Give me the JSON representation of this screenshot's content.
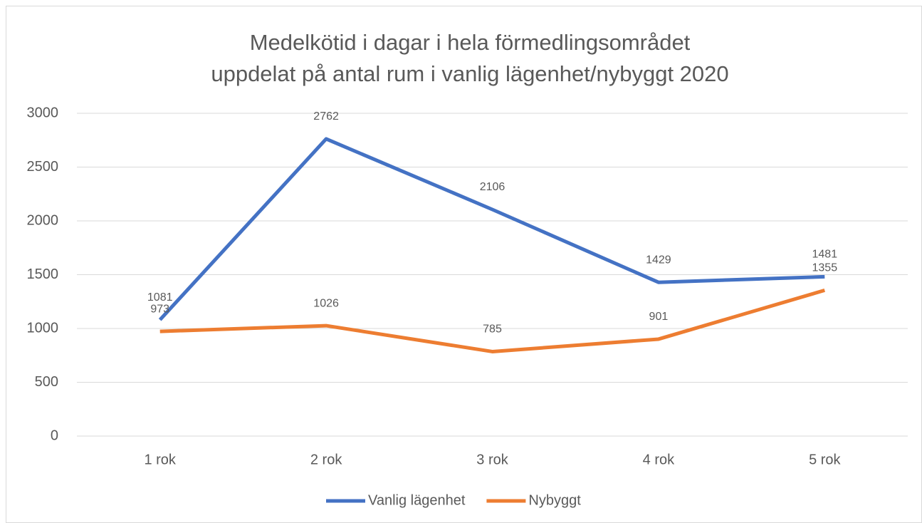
{
  "chart_data": {
    "type": "line",
    "title": [
      "Medelkötid i dagar i hela förmedlingsområdet",
      "uppdelat på antal rum i vanlig lägenhet/nybyggt 2020"
    ],
    "categories": [
      "1 rok",
      "2 rok",
      "3 rok",
      "4 rok",
      "5 rok"
    ],
    "series": [
      {
        "name": "Vanlig lägenhet",
        "color": "#4472c4",
        "values": [
          1081,
          2762,
          2106,
          1429,
          1481
        ]
      },
      {
        "name": "Nybyggt",
        "color": "#ed7d31",
        "values": [
          973,
          1026,
          785,
          901,
          1355
        ]
      }
    ],
    "ylim": [
      0,
      3000
    ],
    "yticks": [
      0,
      500,
      1000,
      1500,
      2000,
      2500,
      3000
    ],
    "grid": true,
    "legend": "bottom"
  }
}
